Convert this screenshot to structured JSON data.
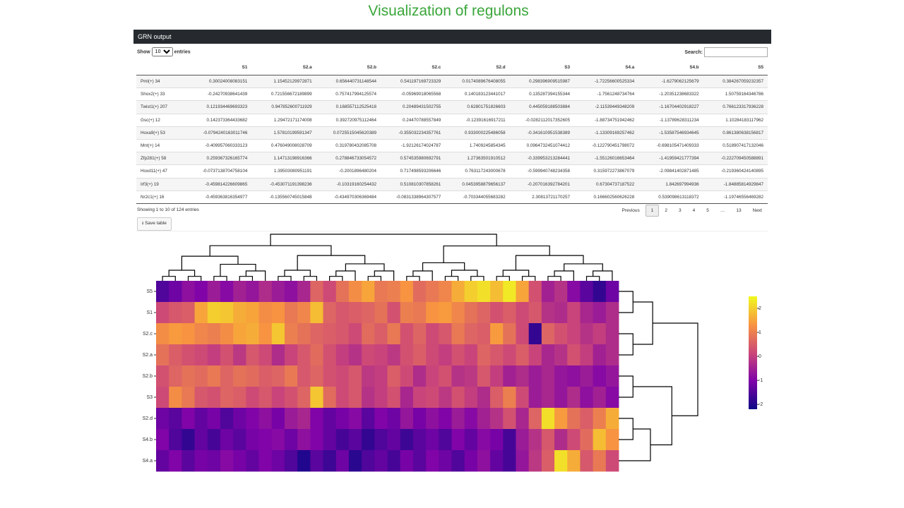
{
  "page": {
    "title": "Visualization of regulons"
  },
  "panel": {
    "title": "GRN output",
    "show": "Show",
    "page_length": "10",
    "entries": "entries",
    "search": "Search:",
    "info": "Showing 1 to 10 of 124 entries",
    "pagination": [
      "Previous",
      "1",
      "2",
      "3",
      "4",
      "5",
      "…",
      "13",
      "Next"
    ],
    "save": "Save table"
  },
  "table": {
    "columns": [
      "S1",
      "S2.a",
      "S2.b",
      "S2.c",
      "S2.d",
      "S3",
      "S4.a",
      "S4.b",
      "S5"
    ],
    "rows": [
      [
        "Pml(+) 34",
        "0.30024008083151",
        "1.15452129972871",
        "0.656440731148544",
        "0.541197169723329",
        "0.0174089676408055",
        "0.298396909515987",
        "-1.72256600525334",
        "-1.6279062125679",
        "0.384267059232357"
      ],
      [
        "Shox2(+) 33",
        "-0.24270938641439",
        "0.721556672189899",
        "0.757417994125574",
        "-0.05969018065568",
        "0.140183123441017",
        "0.135287394155344",
        "-1.7561248734764",
        "-1.20351238683322",
        "1.50759164346786"
      ],
      [
        "Twist1(+) 207",
        "0.121934469693323",
        "0.947852600711929",
        "0.168557112525418",
        "0.20489431502755",
        "0.62801751826603",
        "0.445059188503884",
        "-2.11539449348209",
        "-1.16704402918227",
        "0.766123317936228"
      ],
      [
        "Gsc(+) 12",
        "0.142373364433682",
        "1.29472171174008",
        "0.392720975112464",
        "0.24470788557849",
        "-0.12391616917211",
        "-0.0282112017352605",
        "-1.88734751942462",
        "-1.13789628311234",
        "1.10284183117962"
      ],
      [
        "Hoxa9(+) 53",
        "-0.0794240163011746",
        "1.57810199591347",
        "0.0725515045620389",
        "-0.355032234357761",
        "0.933000225486058",
        "-0.341610951538389",
        "-1.13309169257462",
        "-1.53587546934645",
        "0.861380638156817"
      ],
      [
        "Mnt(+) 14",
        "-0.409957060333123",
        "0.476049008028709",
        "0.319780432085708",
        "-1.92126174024787",
        "1.7409245854345",
        "0.0964732451074412",
        "-0.122790451798072",
        "-0.698105471409333",
        "0.518907417132046"
      ],
      [
        "Zfp281(+) 58",
        "0.259367326165774",
        "1.14713198916366",
        "0.278846733054572",
        "0.574535980692791",
        "1.27363501910512",
        "-0.339953213284441",
        "-1.55126016653464",
        "-1.41959421777394",
        "-0.222709450588891"
      ],
      [
        "Hoxd11(+) 47",
        "-0.0737138704758104",
        "1.39503080951191",
        "-0.2001896480204",
        "0.717498593206646",
        "0.763117243000678",
        "-0.599940748234358",
        "0.315972273867079",
        "-2.09841402871485",
        "-0.219360424140895"
      ],
      [
        "Irf3(+) 19",
        "-0.459814226609865",
        "-0.453071191398236",
        "-0.10319160254432",
        "0.510810307858261",
        "0.0453958879656137",
        "-0.207016392784201",
        "0.67304737187522",
        "1.842697994936",
        "-1.84885814929847"
      ],
      [
        "Nr2c1(+) 16",
        "-0.459363816354977",
        "-0.135560745015848",
        "-0.434970306369484",
        "-0.0831338964307577",
        "-0.703344055683282",
        "2.30813721170257",
        "0.166602560626228",
        "0.539098613118372",
        "-1.19746556469282"
      ]
    ]
  },
  "chart_data": {
    "type": "heatmap",
    "rows": [
      "S5",
      "S1",
      "S2.c",
      "S2.a",
      "S2.b",
      "S3",
      "S2.d",
      "S4.b",
      "S4.a"
    ],
    "values": [
      [
        -1.5,
        -1.2,
        -0.8,
        -1.0,
        -0.6,
        -0.9,
        -0.5,
        -0.7,
        -0.3,
        -0.6,
        -0.8,
        -0.4,
        0.6,
        0.2,
        0.8,
        1.2,
        1.5,
        0.9,
        1.0,
        1.3,
        0.7,
        0.9,
        1.1,
        1.6,
        2.0,
        2.2,
        1.8,
        2.3,
        1.5,
        0.3,
        -0.5,
        -0.2,
        -0.9,
        -1.4,
        -1.8,
        -1.2
      ],
      [
        0.2,
        0.4,
        0.5,
        1.5,
        2.0,
        1.9,
        1.6,
        1.5,
        1.2,
        1.3,
        0.9,
        1.1,
        1.8,
        0.6,
        0.4,
        0.5,
        0.6,
        0.8,
        0.3,
        1.0,
        0.9,
        1.3,
        1.4,
        1.1,
        0.8,
        0.6,
        0.3,
        0.5,
        0.2,
        0.4,
        -0.2,
        -0.3,
        0.1,
        -0.4,
        -0.6,
        -0.3
      ],
      [
        1.2,
        1.4,
        1.3,
        1.1,
        1.0,
        1.2,
        1.5,
        1.6,
        1.3,
        1.9,
        1.0,
        0.8,
        0.6,
        0.5,
        0.4,
        0.2,
        0.7,
        0.5,
        0.9,
        0.3,
        0.6,
        0.2,
        0.4,
        0.9,
        0.6,
        0.5,
        1.4,
        0.8,
        0.2,
        -1.8,
        0.6,
        0.3,
        0.1,
        -0.2,
        0.0,
        -0.3
      ],
      [
        0.8,
        0.5,
        0.3,
        0.2,
        0.0,
        0.3,
        -0.1,
        0.4,
        0.2,
        -0.3,
        0.1,
        0.4,
        0.7,
        0.3,
        0.0,
        -0.2,
        0.2,
        0.1,
        -0.1,
        0.3,
        0.5,
        0.2,
        0.0,
        0.3,
        0.1,
        0.6,
        0.4,
        0.2,
        0.5,
        0.1,
        -0.4,
        -0.2,
        0.3,
        0.0,
        -0.5,
        -0.3
      ],
      [
        0.3,
        0.6,
        0.8,
        0.7,
        0.9,
        0.6,
        0.8,
        0.7,
        0.5,
        0.6,
        0.9,
        0.4,
        0.6,
        0.3,
        0.2,
        0.4,
        -0.1,
        0.0,
        0.5,
        0.2,
        -0.3,
        0.1,
        0.3,
        -0.2,
        -0.1,
        0.4,
        0.0,
        -0.5,
        -0.3,
        -0.6,
        -0.4,
        -0.7,
        -0.8,
        -0.6,
        -0.9,
        -0.7
      ],
      [
        0.2,
        1.2,
        0.9,
        0.4,
        0.3,
        0.6,
        0.5,
        0.2,
        0.4,
        0.1,
        0.3,
        0.6,
        1.9,
        0.7,
        0.2,
        0.4,
        -0.2,
        0.0,
        0.3,
        -0.4,
        0.1,
        0.2,
        -0.1,
        0.3,
        0.0,
        -0.3,
        0.5,
        1.0,
        0.2,
        -0.6,
        -0.4,
        -0.7,
        -0.3,
        -0.8,
        -0.5,
        -0.9
      ],
      [
        -1.2,
        -1.4,
        -1.0,
        -1.3,
        -1.1,
        -1.5,
        -1.2,
        -1.0,
        -0.8,
        -1.1,
        -0.6,
        -0.4,
        -1.0,
        -1.3,
        -1.1,
        -0.9,
        -1.4,
        -1.0,
        -1.2,
        -0.7,
        -1.1,
        -0.8,
        -1.0,
        -0.6,
        -0.9,
        -0.5,
        -0.2,
        0.3,
        -0.4,
        0.6,
        2.2,
        1.4,
        0.8,
        0.5,
        1.0,
        1.6
      ],
      [
        -1.0,
        -1.5,
        -1.8,
        -1.3,
        -1.6,
        -1.2,
        -1.4,
        -1.1,
        -1.0,
        -0.9,
        -1.2,
        -0.8,
        -1.0,
        -1.3,
        -1.6,
        -1.4,
        -1.8,
        -1.5,
        -1.3,
        -1.7,
        -1.4,
        -1.2,
        -1.5,
        -1.0,
        -1.3,
        -0.9,
        -1.1,
        -1.6,
        -0.6,
        -0.2,
        0.4,
        -0.3,
        0.2,
        0.7,
        1.8,
        1.3
      ],
      [
        -1.3,
        -1.0,
        -1.4,
        -1.1,
        -1.2,
        -0.9,
        -1.1,
        -1.3,
        -1.0,
        -1.2,
        -1.5,
        -2.0,
        -1.4,
        -1.7,
        -1.2,
        -1.9,
        -1.5,
        -1.3,
        -1.6,
        -1.1,
        -1.4,
        -1.0,
        -1.2,
        -1.5,
        -1.1,
        -0.8,
        -1.3,
        -1.6,
        -0.7,
        -0.1,
        0.5,
        2.2,
        1.6,
        0.4,
        0.9,
        0.2
      ]
    ],
    "colormap": "plasma",
    "clim": [
      -2.2,
      2.5
    ],
    "colorbar_ticks": [
      2,
      1,
      0,
      -1,
      -2
    ]
  }
}
